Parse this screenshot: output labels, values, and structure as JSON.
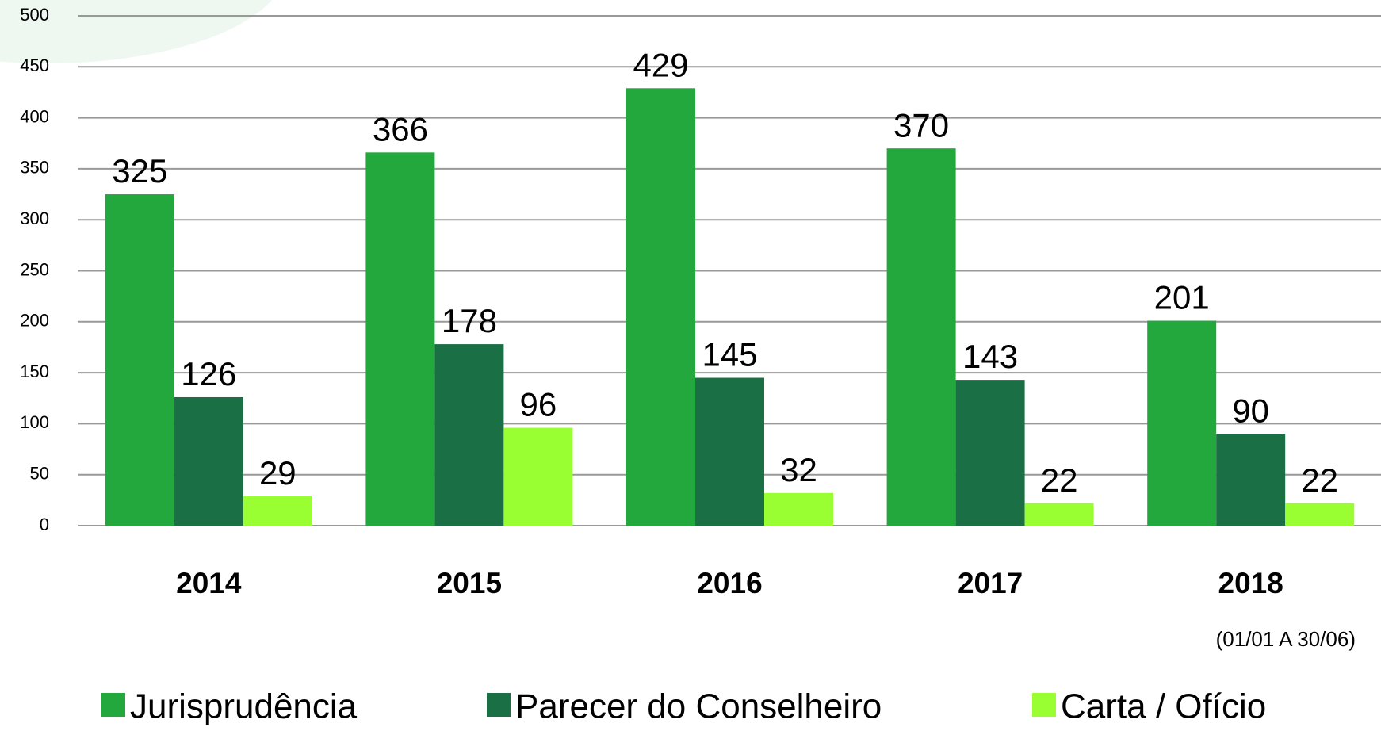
{
  "chart_data": {
    "type": "bar",
    "categories": [
      "2014",
      "2015",
      "2016",
      "2017",
      "2018"
    ],
    "annotation": "(01/01 A 30/06)",
    "series": [
      {
        "name": "Jurisprudência",
        "color": "#22a83c",
        "values": [
          325,
          366,
          429,
          370,
          201
        ]
      },
      {
        "name": "Parecer do Conselheiro",
        "color": "#1a7044",
        "values": [
          126,
          178,
          145,
          143,
          90
        ]
      },
      {
        "name": "Carta / Ofício",
        "color": "#99ff33",
        "values": [
          29,
          96,
          32,
          22,
          22
        ]
      }
    ],
    "ylim": [
      0,
      500
    ],
    "yticks": [
      0,
      50,
      100,
      150,
      200,
      250,
      300,
      350,
      400,
      450,
      500
    ],
    "grid": true,
    "legend": "bottom"
  }
}
